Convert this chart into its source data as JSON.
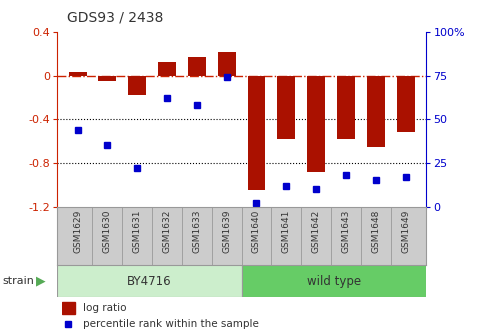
{
  "title": "GDS93 / 2438",
  "samples": [
    "GSM1629",
    "GSM1630",
    "GSM1631",
    "GSM1632",
    "GSM1633",
    "GSM1639",
    "GSM1640",
    "GSM1641",
    "GSM1642",
    "GSM1643",
    "GSM1648",
    "GSM1649"
  ],
  "log_ratio": [
    0.03,
    -0.05,
    -0.18,
    0.12,
    0.17,
    0.22,
    -1.05,
    -0.58,
    -0.88,
    -0.58,
    -0.65,
    -0.52
  ],
  "percentile": [
    44,
    35,
    22,
    62,
    58,
    74,
    2,
    12,
    10,
    18,
    15,
    17
  ],
  "ylim_left": [
    -1.2,
    0.4
  ],
  "ylim_right": [
    0,
    100
  ],
  "bar_color": "#aa1100",
  "dot_color": "#0000cc",
  "hline_color": "#cc2200",
  "grid_color": "#000000",
  "bg_color": "#ffffff",
  "left_yticks": [
    -1.2,
    -0.8,
    -0.4,
    0.0,
    0.4
  ],
  "right_yticks": [
    0,
    25,
    50,
    75,
    100
  ],
  "left_tick_labels": [
    "-1.2",
    "-0.8",
    "-0.4",
    "0",
    "0.4"
  ],
  "right_tick_labels": [
    "0",
    "25",
    "50",
    "75",
    "100%"
  ],
  "legend_log": "log ratio",
  "legend_pct": "percentile rank within the sample",
  "by_color": "#cceecc",
  "wt_color": "#66cc66",
  "by_label": "BY4716",
  "wt_label": "wild type",
  "strain_label": "strain",
  "label_bg": "#cccccc",
  "label_border": "#999999"
}
